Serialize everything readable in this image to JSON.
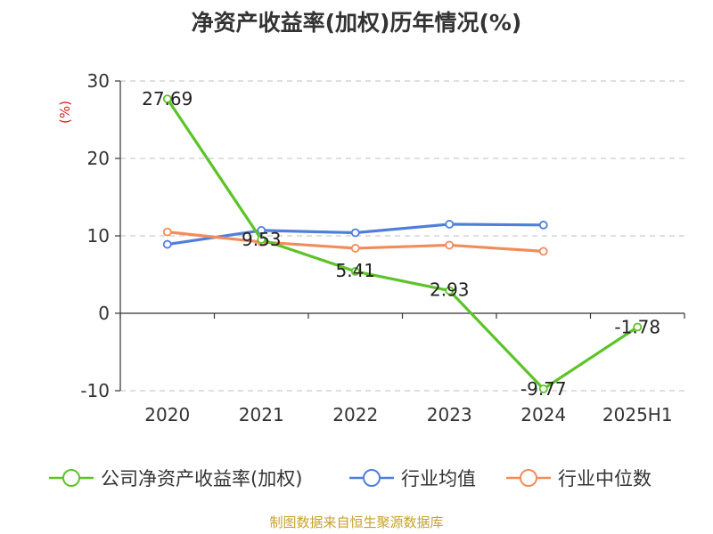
{
  "title": "净资产收益率(加权)历年情况(%)",
  "source": "制图数据来自恒生聚源数据库",
  "colors": {
    "roe": "#5cc328",
    "industry_avg": "#4f7fdb",
    "industry_median": "#f28c5a",
    "unit": "#e02020",
    "grid": "#cccccc",
    "axis": "#333333",
    "text": "#333333"
  },
  "chart_data": {
    "type": "line",
    "ylabel": "(%)",
    "ylim": [
      -10,
      30
    ],
    "yticks": [
      30,
      20,
      10,
      0,
      -10
    ],
    "categories": [
      "2020",
      "2021",
      "2022",
      "2023",
      "2024",
      "2025H1"
    ],
    "grid": true,
    "legend": "bottom",
    "series": [
      {
        "name": "公司净资产收益率(加权)",
        "color_key": "roe",
        "values": [
          27.69,
          9.53,
          5.41,
          2.93,
          -9.77,
          -1.78
        ],
        "labels": [
          "27.69",
          "9.53",
          "5.41",
          "2.93",
          "-9.77",
          "-1.78"
        ]
      },
      {
        "name": "行业均值",
        "color_key": "industry_avg",
        "values": [
          8.9,
          10.7,
          10.4,
          11.5,
          11.4,
          null
        ]
      },
      {
        "name": "行业中位数",
        "color_key": "industry_median",
        "values": [
          10.5,
          9.2,
          8.4,
          8.8,
          8.0,
          null
        ]
      }
    ]
  }
}
